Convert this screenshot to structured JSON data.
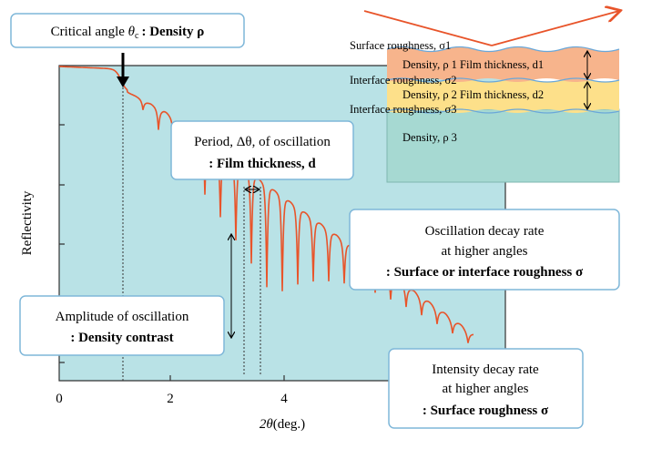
{
  "axes": {
    "x_label_symbol": "2θ",
    "x_label_unit": "(deg.)",
    "y_label": "Reflectivity",
    "x_ticks": [
      0,
      2,
      4
    ]
  },
  "callouts": {
    "critical_angle": {
      "text": "Critical angle",
      "symbol": "θ",
      "subscript": "c",
      "property": ": Density ρ"
    },
    "period": {
      "line1": "Period, Δθ, of oscillation",
      "line2": ": Film thickness, d"
    },
    "oscillation_decay": {
      "line1": "Oscillation decay rate",
      "line2": "at higher angles",
      "line3": ": Surface or interface roughness σ"
    },
    "amplitude": {
      "line1": "Amplitude of oscillation",
      "line2": ": Density contrast"
    },
    "intensity_decay": {
      "line1": "Intensity decay rate",
      "line2": "at higher angles",
      "line3": ": Surface roughness σ"
    }
  },
  "layers": {
    "surface_roughness": "Surface roughness, σ1",
    "layer1": "Density, ρ 1  Film thickness, d1",
    "interface_roughness_2": "Interface roughness, σ2",
    "layer2": "Density, ρ 2  Film thickness, d2",
    "interface_roughness_3": "Interface roughness, σ3",
    "substrate": "Density, ρ 3"
  }
}
